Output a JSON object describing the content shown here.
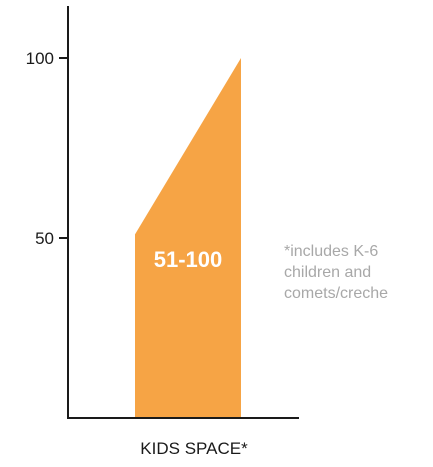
{
  "chart_data": {
    "type": "area",
    "categories": [
      "KIDS SPACE*"
    ],
    "series": [
      {
        "range": [
          51,
          100
        ],
        "range_label": "51-100",
        "color": "#F6A445"
      }
    ],
    "yticks": [
      50,
      100
    ],
    "ylim": [
      0,
      115
    ],
    "xlabel": "",
    "ylabel": "",
    "grid": false,
    "annotation": [
      "*includes K-6",
      "children and",
      "comets/creche"
    ],
    "axis_color": "#1a1a1a",
    "note_color": "#a8a8a8"
  }
}
